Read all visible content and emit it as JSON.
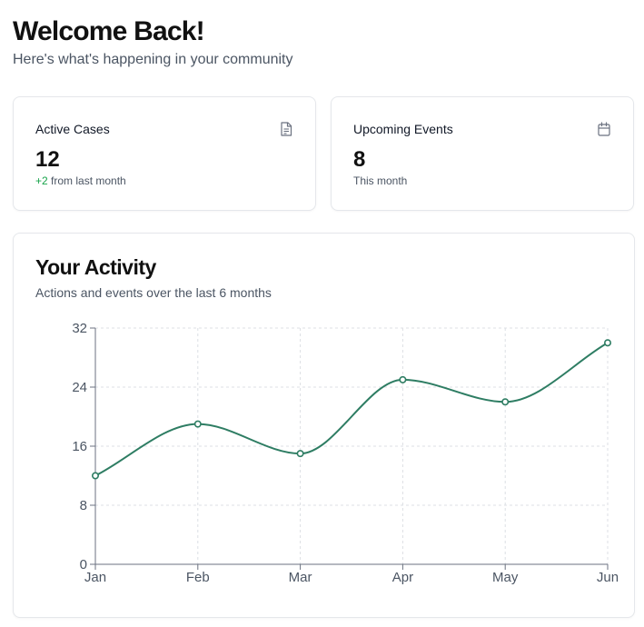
{
  "header": {
    "title": "Welcome Back!",
    "subtitle": "Here's what's happening in your community"
  },
  "stats": [
    {
      "label": "Active Cases",
      "icon": "document-icon",
      "value": "12",
      "delta": "+2",
      "note": " from last month",
      "delta_color": "#16a34a"
    },
    {
      "label": "Upcoming Events",
      "icon": "calendar-icon",
      "value": "8",
      "note": "This month"
    }
  ],
  "activity": {
    "title": "Your Activity",
    "subtitle": "Actions and events over the last 6 months"
  },
  "chart_data": {
    "type": "line",
    "categories": [
      "Jan",
      "Feb",
      "Mar",
      "Apr",
      "May",
      "Jun"
    ],
    "values": [
      12,
      19,
      15,
      25,
      22,
      30
    ],
    "ylim": [
      0,
      32
    ],
    "yticks": [
      0,
      8,
      16,
      24,
      32
    ],
    "grid": true,
    "line_color": "#2e7d63"
  }
}
